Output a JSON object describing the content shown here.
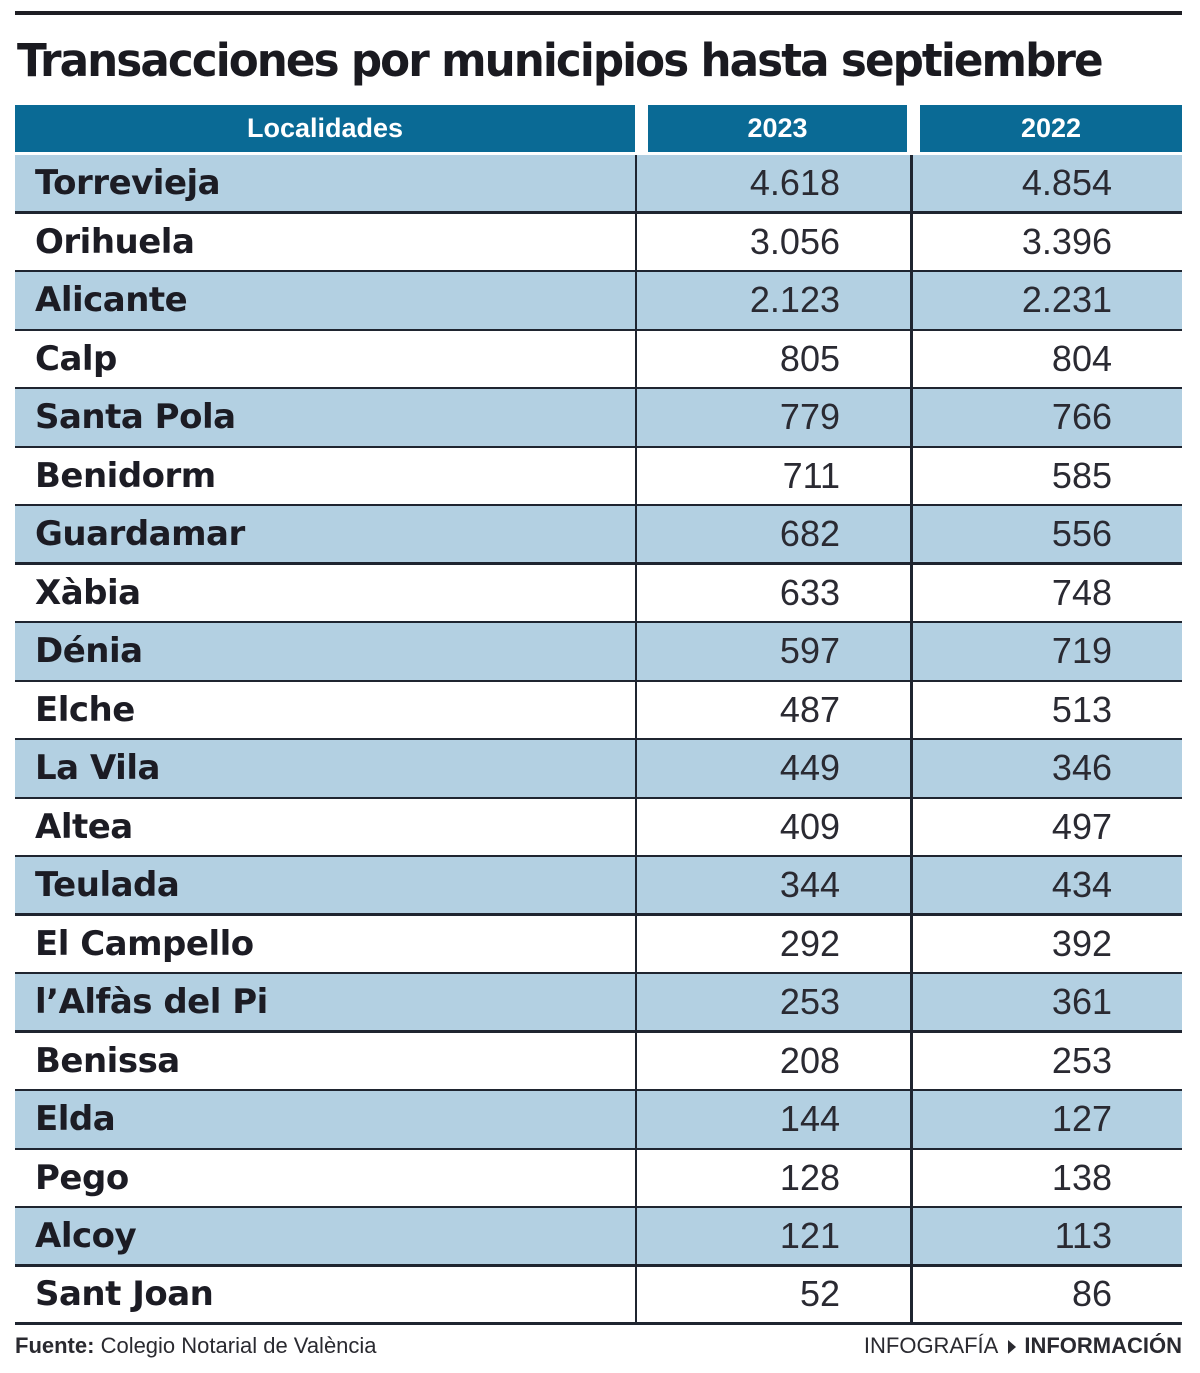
{
  "title": "Transacciones por municipios hasta septiembre",
  "table": {
    "headers": [
      "Localidades",
      "2023",
      "2022"
    ],
    "rows": [
      {
        "name": "Torrevieja",
        "v2023": "4.618",
        "v2022": "4.854"
      },
      {
        "name": "Orihuela",
        "v2023": "3.056",
        "v2022": "3.396"
      },
      {
        "name": "Alicante",
        "v2023": "2.123",
        "v2022": "2.231"
      },
      {
        "name": "Calp",
        "v2023": "805",
        "v2022": "804"
      },
      {
        "name": "Santa Pola",
        "v2023": "779",
        "v2022": "766"
      },
      {
        "name": "Benidorm",
        "v2023": "711",
        "v2022": "585"
      },
      {
        "name": "Guardamar",
        "v2023": "682",
        "v2022": "556"
      },
      {
        "name": "Xàbia",
        "v2023": "633",
        "v2022": "748"
      },
      {
        "name": "Dénia",
        "v2023": "597",
        "v2022": "719"
      },
      {
        "name": "Elche",
        "v2023": "487",
        "v2022": "513"
      },
      {
        "name": "La Vila",
        "v2023": "449",
        "v2022": "346"
      },
      {
        "name": "Altea",
        "v2023": "409",
        "v2022": "497"
      },
      {
        "name": "Teulada",
        "v2023": "344",
        "v2022": "434"
      },
      {
        "name": "El Campello",
        "v2023": "292",
        "v2022": "392"
      },
      {
        "name": "l’Alfàs del Pi",
        "v2023": "253",
        "v2022": "361"
      },
      {
        "name": "Benissa",
        "v2023": "208",
        "v2022": "253"
      },
      {
        "name": "Elda",
        "v2023": "144",
        "v2022": "127"
      },
      {
        "name": "Pego",
        "v2023": "128",
        "v2022": "138"
      },
      {
        "name": "Alcoy",
        "v2023": "121",
        "v2022": "113"
      },
      {
        "name": "Sant Joan",
        "v2023": "52",
        "v2022": "86"
      }
    ]
  },
  "footer": {
    "source_label": "Fuente:",
    "source_text": " Colegio Notarial de València",
    "credit_prefix": "INFOGRAFÍA",
    "credit_brand": "INFORMACIÓN"
  },
  "colors": {
    "header_bg": "#0a6a95",
    "shaded_row": "#b3d0e2",
    "rule": "#1f2530"
  },
  "chart_data": {
    "type": "table",
    "title": "Transacciones por municipios hasta septiembre",
    "columns": [
      "Localidades",
      "2023",
      "2022"
    ],
    "categories": [
      "Torrevieja",
      "Orihuela",
      "Alicante",
      "Calp",
      "Santa Pola",
      "Benidorm",
      "Guardamar",
      "Xàbia",
      "Dénia",
      "Elche",
      "La Vila",
      "Altea",
      "Teulada",
      "El Campello",
      "l’Alfàs del Pi",
      "Benissa",
      "Elda",
      "Pego",
      "Alcoy",
      "Sant Joan"
    ],
    "series": [
      {
        "name": "2023",
        "values": [
          4618,
          3056,
          2123,
          805,
          779,
          711,
          682,
          633,
          597,
          487,
          449,
          409,
          344,
          292,
          253,
          208,
          144,
          128,
          121,
          52
        ]
      },
      {
        "name": "2022",
        "values": [
          4854,
          3396,
          2231,
          804,
          766,
          585,
          556,
          748,
          719,
          513,
          346,
          497,
          434,
          392,
          361,
          253,
          127,
          138,
          113,
          86
        ]
      }
    ],
    "source": "Colegio Notarial de València"
  }
}
